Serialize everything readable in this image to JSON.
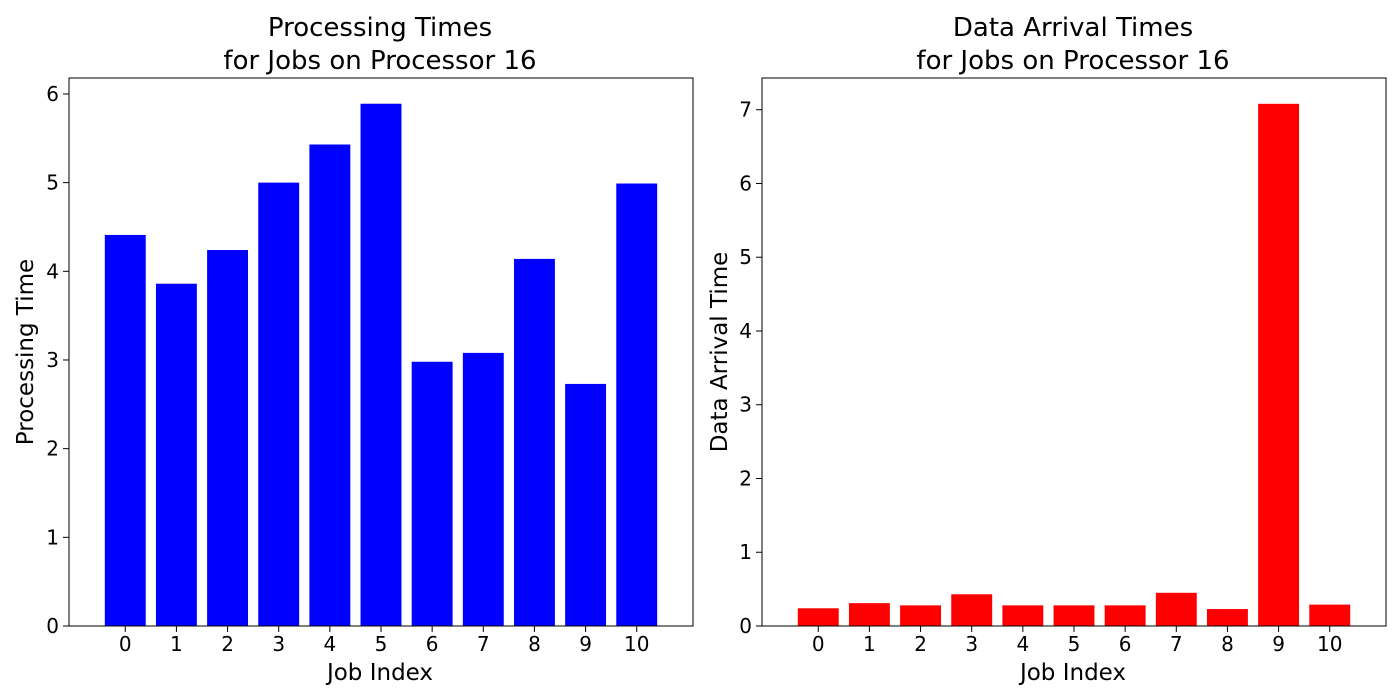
{
  "chart_data": [
    {
      "type": "bar",
      "title": [
        "Processing Times",
        "for Jobs on Processor 16"
      ],
      "xlabel": "Job Index",
      "ylabel": "Processing Time",
      "categories": [
        "0",
        "1",
        "2",
        "3",
        "4",
        "5",
        "6",
        "7",
        "8",
        "9",
        "10"
      ],
      "values": [
        4.41,
        3.86,
        4.24,
        5.0,
        5.43,
        5.89,
        2.98,
        3.08,
        4.14,
        2.73,
        4.99
      ],
      "yticks": [
        0,
        1,
        2,
        3,
        4,
        5,
        6
      ],
      "ylim": [
        0,
        6.18
      ],
      "color": "#0000ff",
      "grid": false,
      "legend": "none"
    },
    {
      "type": "bar",
      "title": [
        "Data Arrival Times",
        "for Jobs on Processor 16"
      ],
      "xlabel": "Job Index",
      "ylabel": "Data Arrival Time",
      "categories": [
        "0",
        "1",
        "2",
        "3",
        "4",
        "5",
        "6",
        "7",
        "8",
        "9",
        "10"
      ],
      "values": [
        0.24,
        0.31,
        0.28,
        0.43,
        0.28,
        0.28,
        0.28,
        0.45,
        0.23,
        7.08,
        0.29
      ],
      "yticks": [
        0,
        1,
        2,
        3,
        4,
        5,
        6,
        7
      ],
      "ylim": [
        0,
        7.43
      ],
      "color": "#ff0000",
      "grid": false,
      "legend": "none"
    }
  ]
}
